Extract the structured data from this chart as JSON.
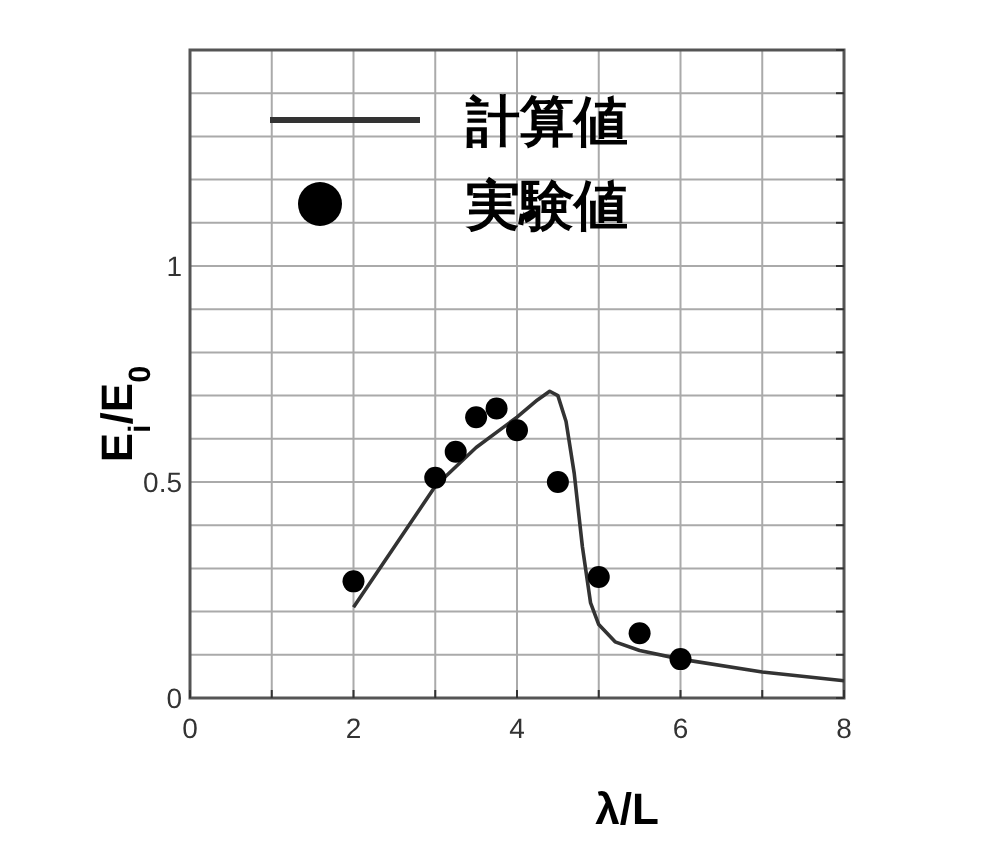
{
  "chart_data": {
    "type": "scatter",
    "xlabel": "λ/L",
    "ylabel": "E$_{i}$/E$_{0}$",
    "xlim": [
      0,
      8
    ],
    "ylim": [
      0,
      1.5
    ],
    "xticks": [
      0,
      {
        "value": 1,
        "label": null
      },
      2,
      {
        "value": 3,
        "label": null
      },
      4,
      {
        "value": 5,
        "label": null
      },
      6,
      {
        "value": 7,
        "label": null
      },
      8
    ],
    "yticks": [
      0,
      {
        "value": 0.1,
        "label": null
      },
      {
        "value": 0.2,
        "label": null
      },
      {
        "value": 0.3,
        "label": null
      },
      {
        "value": 0.4,
        "label": null
      },
      0.5,
      {
        "value": 0.6,
        "label": null
      },
      {
        "value": 0.7,
        "label": null
      },
      {
        "value": 0.8,
        "label": null
      },
      {
        "value": 0.9,
        "label": null
      },
      1,
      {
        "value": 1.1,
        "label": null
      },
      {
        "value": 1.2,
        "label": null
      },
      {
        "value": 1.3,
        "label": null
      },
      {
        "value": 1.4,
        "label": null
      },
      {
        "value": 1.5,
        "label": null
      }
    ],
    "grid": true,
    "legend": "top left",
    "series": [
      {
        "name": "計算値",
        "type": "line",
        "color": "#333333",
        "line_style": "solid",
        "x": [
          2,
          3,
          3.5,
          4,
          4.25,
          4.4,
          4.5,
          4.6,
          4.7,
          4.8,
          4.9,
          5,
          5.2,
          5.5,
          6,
          7,
          8
        ],
        "values": [
          0.21,
          0.49,
          0.58,
          0.65,
          0.69,
          0.71,
          0.7,
          0.64,
          0.52,
          0.35,
          0.22,
          0.17,
          0.13,
          0.11,
          0.09,
          0.06,
          0.04
        ]
      },
      {
        "name": "実験値",
        "color": "#000000",
        "marker": "circle",
        "x": [
          2,
          3,
          3.25,
          3.5,
          3.75,
          4,
          4.5,
          5,
          5.5,
          6
        ],
        "values": [
          0.27,
          0.51,
          0.57,
          0.65,
          0.67,
          0.62,
          0.5,
          0.28,
          0.15,
          0.09
        ]
      }
    ]
  }
}
